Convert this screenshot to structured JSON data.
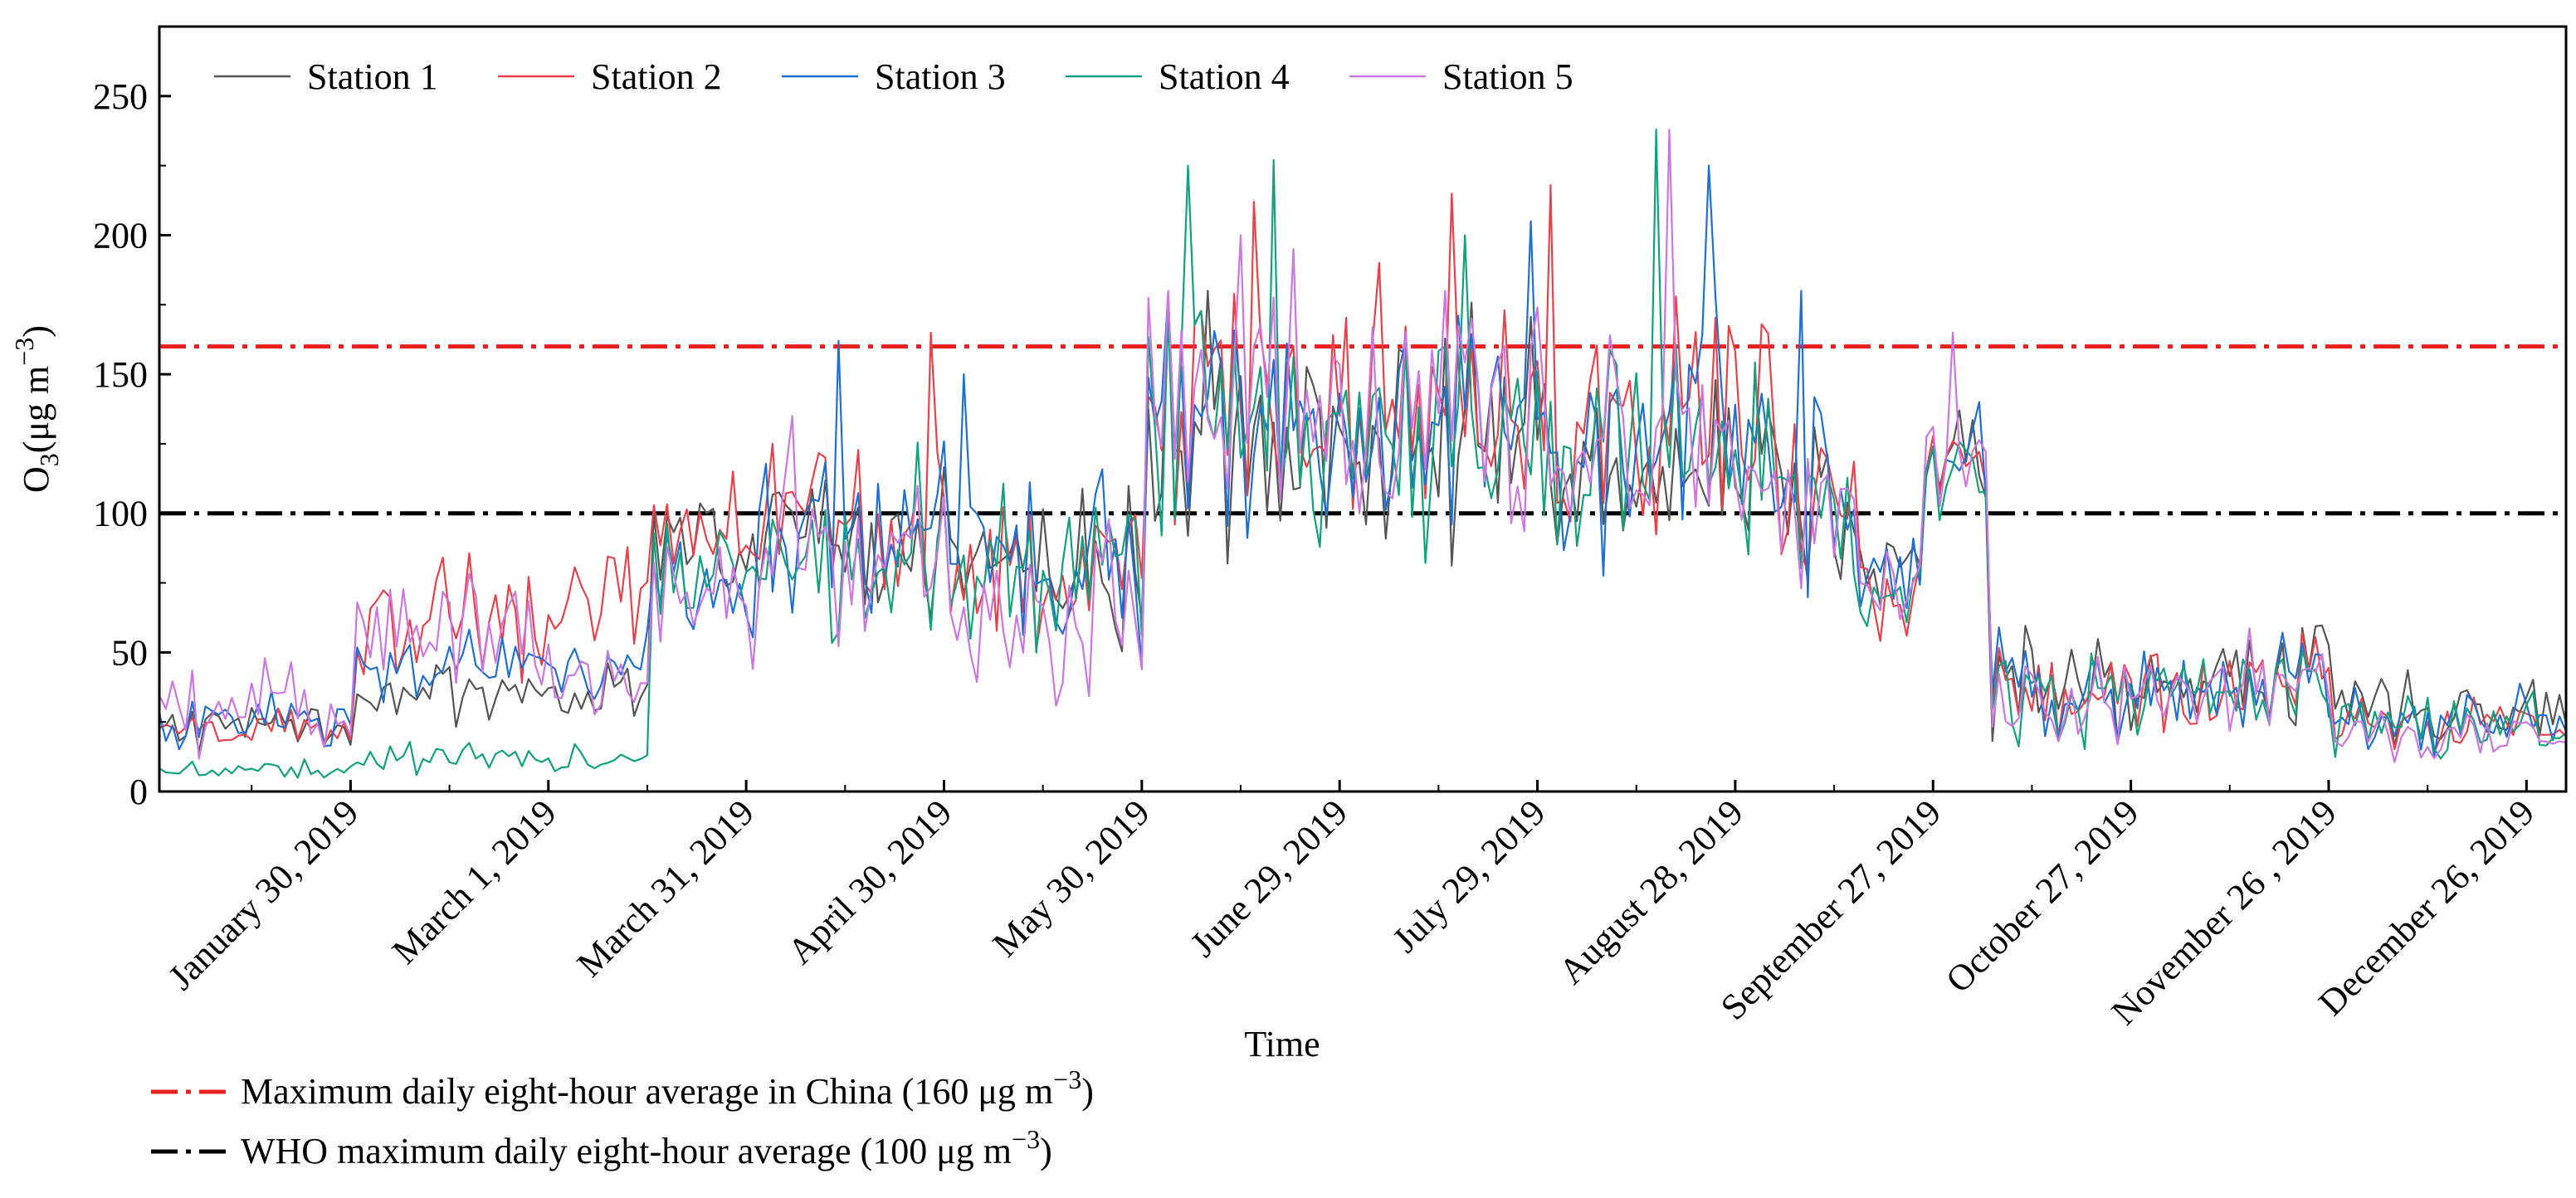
{
  "chart_data": {
    "type": "line",
    "title": "",
    "xlabel": "Time",
    "ylabel": {
      "main": "O",
      "sub": "3",
      "rest": "(μg m",
      "sup": "−3",
      "close": ")"
    },
    "ylim": [
      0,
      275
    ],
    "yticks": [
      0,
      50,
      100,
      150,
      200,
      250
    ],
    "yticklabels": [
      "0",
      "50",
      "100",
      "150",
      "200",
      "250"
    ],
    "xlim_day": [
      1,
      366
    ],
    "xticks_day": [
      30,
      60,
      90,
      120,
      150,
      180,
      210,
      240,
      270,
      300,
      330,
      360
    ],
    "xticklabels": [
      "January 30, 2019",
      "March 1, 2019",
      "March 31, 2019",
      "April 30, 2019",
      "May 30, 2019",
      "June 29, 2019",
      "July 29, 2019",
      "August 28, 2019",
      "September 27, 2019",
      "October 27, 2019",
      "November 26 , 2019",
      "December 26, 2019"
    ],
    "legend_position": "top-left",
    "series": [
      {
        "name": "Station 1",
        "color": "#555555"
      },
      {
        "name": "Station 2",
        "color": "#e8414a"
      },
      {
        "name": "Station 3",
        "color": "#1f6fd1"
      },
      {
        "name": "Station 4",
        "color": "#13a07c"
      },
      {
        "name": "Station 5",
        "color": "#cc77e0"
      }
    ],
    "segments": [
      {
        "from": 1,
        "to": 30,
        "means": [
          24,
          22,
          25,
          8,
          30
        ],
        "amp": [
          10,
          8,
          12,
          4,
          18
        ]
      },
      {
        "from": 30,
        "to": 60,
        "means": [
          35,
          60,
          45,
          12,
          55
        ],
        "amp": [
          12,
          30,
          15,
          6,
          25
        ]
      },
      {
        "from": 60,
        "to": 75,
        "means": [
          35,
          75,
          45,
          12,
          40
        ],
        "amp": [
          12,
          25,
          15,
          5,
          18
        ]
      },
      {
        "from": 75,
        "to": 90,
        "means": [
          85,
          90,
          70,
          80,
          72
        ],
        "amp": [
          20,
          22,
          25,
          20,
          22
        ]
      },
      {
        "from": 90,
        "to": 120,
        "means": [
          90,
          95,
          92,
          88,
          80
        ],
        "amp": [
          35,
          38,
          38,
          38,
          40
        ]
      },
      {
        "from": 120,
        "to": 150,
        "means": [
          80,
          78,
          82,
          80,
          62
        ],
        "amp": [
          35,
          35,
          35,
          40,
          35
        ]
      },
      {
        "from": 150,
        "to": 175,
        "means": [
          130,
          140,
          135,
          135,
          140
        ],
        "amp": [
          45,
          45,
          45,
          50,
          45
        ]
      },
      {
        "from": 175,
        "to": 245,
        "means": [
          125,
          135,
          130,
          128,
          132
        ],
        "amp": [
          48,
          48,
          48,
          50,
          50
        ]
      },
      {
        "from": 245,
        "to": 258,
        "means": [
          110,
          110,
          112,
          108,
          110
        ],
        "amp": [
          40,
          40,
          40,
          40,
          40
        ]
      },
      {
        "from": 258,
        "to": 268,
        "means": [
          75,
          68,
          72,
          68,
          70
        ],
        "amp": [
          18,
          18,
          18,
          18,
          18
        ]
      },
      {
        "from": 268,
        "to": 278,
        "means": [
          120,
          120,
          118,
          115,
          125
        ],
        "amp": [
          18,
          18,
          18,
          18,
          20
        ]
      },
      {
        "from": 278,
        "to": 330,
        "means": [
          42,
          38,
          38,
          38,
          36
        ],
        "amp": [
          22,
          20,
          20,
          22,
          20
        ]
      },
      {
        "from": 330,
        "to": 366,
        "means": [
          30,
          24,
          26,
          25,
          20
        ],
        "amp": [
          14,
          12,
          14,
          14,
          10
        ]
      }
    ],
    "peaks": [
      {
        "day": 88,
        "series": 1,
        "value": 115
      },
      {
        "day": 94,
        "series": 1,
        "value": 125
      },
      {
        "day": 97,
        "series": 4,
        "value": 135
      },
      {
        "day": 104,
        "series": 2,
        "value": 162
      },
      {
        "day": 118,
        "series": 1,
        "value": 165
      },
      {
        "day": 123,
        "series": 2,
        "value": 150
      },
      {
        "day": 154,
        "series": 4,
        "value": 180
      },
      {
        "day": 157,
        "series": 3,
        "value": 225
      },
      {
        "day": 160,
        "series": 0,
        "value": 180
      },
      {
        "day": 165,
        "series": 4,
        "value": 200
      },
      {
        "day": 167,
        "series": 1,
        "value": 212
      },
      {
        "day": 170,
        "series": 3,
        "value": 227
      },
      {
        "day": 173,
        "series": 4,
        "value": 195
      },
      {
        "day": 186,
        "series": 1,
        "value": 190
      },
      {
        "day": 197,
        "series": 1,
        "value": 215
      },
      {
        "day": 199,
        "series": 3,
        "value": 200
      },
      {
        "day": 209,
        "series": 2,
        "value": 205
      },
      {
        "day": 212,
        "series": 1,
        "value": 218
      },
      {
        "day": 228,
        "series": 3,
        "value": 238
      },
      {
        "day": 230,
        "series": 4,
        "value": 238
      },
      {
        "day": 236,
        "series": 2,
        "value": 225
      },
      {
        "day": 244,
        "series": 1,
        "value": 168
      },
      {
        "day": 250,
        "series": 2,
        "value": 180
      },
      {
        "day": 273,
        "series": 4,
        "value": 165
      },
      {
        "day": 277,
        "series": 2,
        "value": 140
      }
    ],
    "reference_lines": [
      {
        "value": 160,
        "color": "#e8201f",
        "label_pre": "Maximum daily eight-hour average in China (160 μg m",
        "label_sup": "−3",
        "label_post": ")"
      },
      {
        "value": 100,
        "color": "#000000",
        "label_pre": "WHO maximum daily eight-hour average (100 μg m",
        "label_sup": "−3",
        "label_post": ")"
      }
    ]
  }
}
